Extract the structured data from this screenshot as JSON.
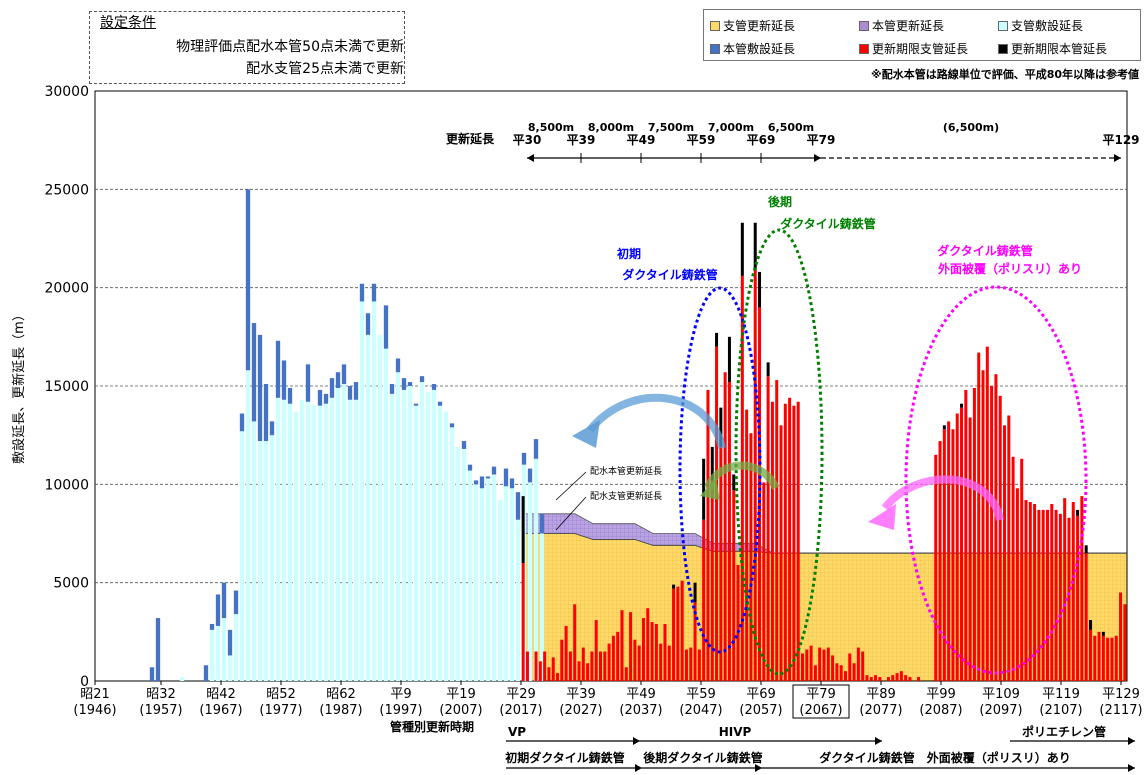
{
  "conditions": {
    "title": "設定条件",
    "line1": "物理評価点配水本管50点未満で更新",
    "line2": "配水支管25点未満で更新"
  },
  "note": "※配水本管は路線単位で評価、平成80年以降は参考値",
  "legend": [
    {
      "label": "支管更新延長",
      "color": "#ffd966"
    },
    {
      "label": "本管更新延長",
      "color": "#a98bd6"
    },
    {
      "label": "支管敷設延長",
      "color": "#ccffff"
    },
    {
      "label": "本管敷設延長",
      "color": "#4472c4"
    },
    {
      "label": "更新期限支管延長",
      "color": "#ff0000"
    },
    {
      "label": "更新期限本管延長",
      "color": "#000000"
    }
  ],
  "chart_data": {
    "type": "bar",
    "ylabel": "敷設延長、更新延長（m）",
    "ylim": [
      0,
      30000
    ],
    "yticks": [
      0,
      5000,
      10000,
      15000,
      20000,
      25000,
      30000
    ],
    "xticks": [
      {
        "label": "昭21",
        "sub": "(1946)",
        "year": 1946
      },
      {
        "label": "昭32",
        "sub": "(1957)",
        "year": 1957
      },
      {
        "label": "昭42",
        "sub": "(1967)",
        "year": 1967
      },
      {
        "label": "昭52",
        "sub": "(1977)",
        "year": 1977
      },
      {
        "label": "昭62",
        "sub": "(1987)",
        "year": 1987
      },
      {
        "label": "平9",
        "sub": "(1997)",
        "year": 1997
      },
      {
        "label": "平19",
        "sub": "(2007)",
        "year": 2007
      },
      {
        "label": "平29",
        "sub": "(2017)",
        "year": 2017
      },
      {
        "label": "平39",
        "sub": "(2027)",
        "year": 2027
      },
      {
        "label": "平49",
        "sub": "(2037)",
        "year": 2037
      },
      {
        "label": "平59",
        "sub": "(2047)",
        "year": 2047
      },
      {
        "label": "平69",
        "sub": "(2057)",
        "year": 2057
      },
      {
        "label": "平79",
        "sub": "(2067)",
        "year": 2067
      },
      {
        "label": "平89",
        "sub": "(2077)",
        "year": 2077
      },
      {
        "label": "平99",
        "sub": "(2087)",
        "year": 2087
      },
      {
        "label": "平109",
        "sub": "(2097)",
        "year": 2097
      },
      {
        "label": "平119",
        "sub": "(2107)",
        "year": 2107
      },
      {
        "label": "平129",
        "sub": "(2117)",
        "year": 2117
      }
    ],
    "x_start": 1946,
    "x_end": 2118,
    "historical": {
      "start_year": 1946,
      "branch": [
        0,
        0,
        0,
        0,
        0,
        0,
        0,
        0,
        0,
        0,
        0,
        0,
        0,
        0,
        200,
        0,
        0,
        0,
        0,
        2600,
        2800,
        3200,
        1300,
        3400,
        12700,
        15800,
        13200,
        12200,
        12200,
        12500,
        14400,
        14300,
        14100,
        13700,
        14300,
        14200,
        14000,
        14000,
        14100,
        14400,
        14900,
        15100,
        14300,
        14300,
        19300,
        17600,
        19300,
        17600,
        16900,
        14600,
        15700,
        14800,
        15000,
        14000,
        15200,
        14700,
        14800,
        14000,
        13700,
        12900,
        11900,
        11800,
        10700,
        10000,
        9800,
        10300,
        10500,
        9200,
        9900,
        9800,
        8200,
        11000,
        10100,
        11300,
        7500
      ],
      "main": [
        0,
        0,
        0,
        0,
        0,
        0,
        0,
        0,
        0,
        700,
        3200,
        0,
        0,
        0,
        0,
        0,
        0,
        0,
        800,
        300,
        1600,
        1800,
        1300,
        1200,
        900,
        9200,
        5000,
        5400,
        2900,
        700,
        2900,
        2000,
        800,
        0,
        0,
        1900,
        0,
        800,
        500,
        1000,
        800,
        1000,
        700,
        900,
        900,
        1100,
        900,
        0,
        2200,
        500,
        700,
        600,
        200,
        100,
        300,
        0,
        300,
        200,
        0,
        200,
        0,
        400,
        300,
        200,
        600,
        100,
        400,
        0,
        900,
        500,
        1400,
        600,
        700,
        1000,
        1000
      ]
    },
    "future": {
      "start_year": 2017,
      "deadline_branch": [
        6000,
        1500,
        0,
        1500,
        1000,
        1500,
        700,
        1200,
        400,
        2100,
        2800,
        1500,
        3900,
        1000,
        1700,
        900,
        1500,
        3100,
        1500,
        1500,
        1900,
        2300,
        2500,
        3600,
        700,
        3500,
        2100,
        1800,
        3200,
        3700,
        3000,
        2900,
        1900,
        2900,
        1800,
        4700,
        4800,
        5100,
        1600,
        1700,
        4000,
        1600,
        8200,
        14800,
        10200,
        17000,
        11900,
        15700,
        15200,
        9700,
        5900,
        20600,
        13800,
        12600,
        20900,
        19000,
        10100,
        15500,
        14200,
        15300,
        13000,
        14100,
        14400,
        14000,
        14200,
        1400,
        1600,
        1800,
        800,
        1700,
        1600,
        1700,
        1300,
        900,
        800,
        500,
        1400,
        900,
        1700,
        1500,
        300,
        200,
        300,
        200,
        0,
        200,
        300,
        400,
        500,
        300,
        200,
        0,
        200,
        0,
        0,
        0,
        11500,
        12200,
        12800,
        13200,
        12800,
        13600,
        13900,
        14800,
        13400,
        14900,
        16700,
        15800,
        17000,
        15000,
        15600,
        14500,
        13000,
        13500,
        11400,
        9800,
        11300,
        9200,
        9100,
        9000,
        8700,
        8700,
        8700,
        9000,
        8700,
        8500,
        9300,
        8300,
        9100,
        8400,
        9400,
        6500,
        2600,
        2300,
        2500,
        2300,
        2200,
        2200,
        2300,
        4500,
        3900
      ],
      "deadline_main": [
        3400,
        0,
        0,
        0,
        0,
        0,
        0,
        0,
        0,
        0,
        0,
        0,
        0,
        0,
        0,
        0,
        0,
        0,
        0,
        0,
        0,
        0,
        0,
        0,
        0,
        0,
        0,
        0,
        0,
        0,
        0,
        0,
        0,
        0,
        0,
        200,
        0,
        0,
        0,
        0,
        1000,
        0,
        3100,
        0,
        1700,
        700,
        2000,
        0,
        2300,
        800,
        0,
        2700,
        0,
        0,
        2400,
        1800,
        0,
        700,
        0,
        0,
        0,
        0,
        0,
        0,
        0,
        0,
        0,
        0,
        0,
        0,
        0,
        0,
        0,
        0,
        0,
        0,
        0,
        0,
        0,
        0,
        0,
        0,
        0,
        0,
        0,
        0,
        0,
        0,
        0,
        0,
        0,
        0,
        0,
        0,
        0,
        0,
        0,
        0,
        200,
        0,
        0,
        0,
        200,
        0,
        0,
        0,
        0,
        0,
        0,
        0,
        0,
        0,
        0,
        0,
        0,
        0,
        0,
        0,
        0,
        0,
        0,
        0,
        0,
        0,
        0,
        0,
        0,
        0,
        0,
        300,
        0,
        400,
        500,
        0,
        0,
        200,
        0,
        0,
        0,
        0,
        0,
        0,
        0,
        0,
        500,
        600
      ]
    },
    "renewal_branch_level": [
      {
        "year": 2017.5,
        "value": 7500
      },
      {
        "year": 2026,
        "value": 7500
      },
      {
        "year": 2029,
        "value": 7200
      },
      {
        "year": 2036,
        "value": 7200
      },
      {
        "year": 2039,
        "value": 6900
      },
      {
        "year": 2046,
        "value": 6900
      },
      {
        "year": 2049,
        "value": 6600
      },
      {
        "year": 2056,
        "value": 6600
      },
      {
        "year": 2059,
        "value": 6500
      },
      {
        "year": 2118,
        "value": 6500
      }
    ],
    "renewal_main_top": [
      {
        "year": 2017.5,
        "value": 8500
      },
      {
        "year": 2026,
        "value": 8500
      },
      {
        "year": 2029,
        "value": 8000
      },
      {
        "year": 2036,
        "value": 8000
      },
      {
        "year": 2039,
        "value": 7500
      },
      {
        "year": 2046,
        "value": 7500
      },
      {
        "year": 2049,
        "value": 7000
      },
      {
        "year": 2056,
        "value": 7000
      },
      {
        "year": 2059,
        "value": 6500
      },
      {
        "year": 2118,
        "value": 6500
      }
    ],
    "annotations": {
      "renewal_length_label": "更新延長",
      "periods": [
        {
          "label": "平30",
          "year": 2018
        },
        {
          "label": "平39",
          "year": 2027
        },
        {
          "label": "平49",
          "year": 2037
        },
        {
          "label": "平59",
          "year": 2047
        },
        {
          "label": "平69",
          "year": 2057
        },
        {
          "label": "平79",
          "year": 2067
        },
        {
          "label": "平129",
          "year": 2117
        }
      ],
      "lengths": [
        {
          "label": "8,500m",
          "year": 2022
        },
        {
          "label": "8,000m",
          "year": 2032
        },
        {
          "label": "7,500m",
          "year": 2042
        },
        {
          "label": "7,000m",
          "year": 2052
        },
        {
          "label": "6,500m",
          "year": 2062
        },
        {
          "label": "(6,500m)",
          "year": 2092
        }
      ],
      "early_ductile": [
        "初期",
        "ダクタイル鋳鉄管"
      ],
      "late_ductile": [
        "後期",
        "ダクタイル鋳鉄管"
      ],
      "coated_ductile": [
        "ダクタイル鋳鉄管",
        "外面被覆（ポリスリ）あり"
      ],
      "main_renewal_callout": "配水本管更新延長",
      "branch_renewal_callout": "配水支管更新延長",
      "period_label": "管種別更新時期",
      "vp": "VP",
      "hivp": "HIVP",
      "polyethylene": "ポリエチレン管",
      "early_ductile_line": "初期ダクタイル鋳鉄管",
      "late_ductile_line": "後期ダクタイル鋳鉄管",
      "coated_line": "ダクタイル鋳鉄管　外面被覆（ポリスリ）あり"
    }
  }
}
